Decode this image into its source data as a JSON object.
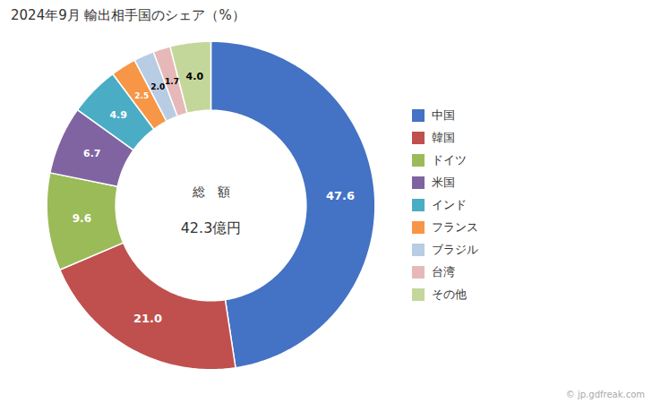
{
  "chart_data": {
    "type": "pie",
    "title": "2024年9月 輸出相手国のシェア（%）",
    "categories": [
      "中国",
      "韓国",
      "ドイツ",
      "米国",
      "インド",
      "フランス",
      "ブラジル",
      "台湾",
      "その他"
    ],
    "values": [
      47.6,
      21.0,
      9.6,
      6.7,
      4.9,
      2.5,
      2.0,
      1.7,
      4.0
    ],
    "value_labels": [
      "47.6",
      "21.0",
      "9.6",
      "6.7",
      "4.9",
      "2.5",
      "2.0",
      "1.7",
      "4.0"
    ],
    "colors": [
      "#4472C4",
      "#C0504D",
      "#9BBB59",
      "#8064A2",
      "#4BACC6",
      "#F79646",
      "#B8CCE4",
      "#E6B9B8",
      "#C4D79B"
    ],
    "data_labels": true,
    "legend": "right",
    "annotations": [
      "総　額",
      "42.3億円",
      "© jp.gdfreak.com"
    ]
  }
}
